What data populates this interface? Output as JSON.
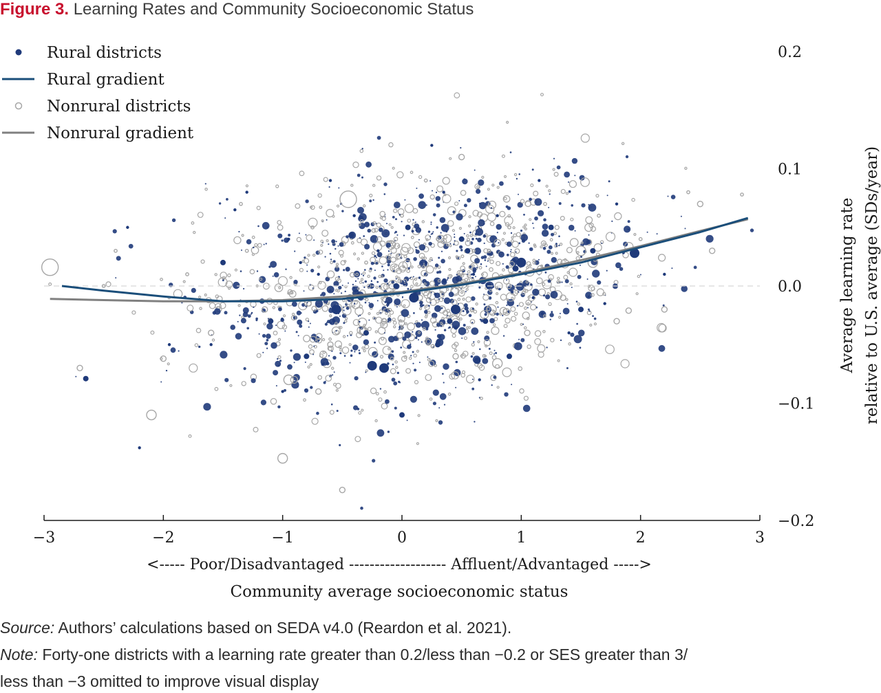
{
  "figure": {
    "label": "Figure 3.",
    "title": "Learning Rates and Community Socioeconomic Status"
  },
  "colors": {
    "rural": "#1f3a7a",
    "rural_line": "#1a4e7a",
    "nonrural": "#a6a6a6",
    "nonrural_line": "#808080",
    "title_accent": "#c8102e",
    "zero_line": "#d6d6d6"
  },
  "chart_data": {
    "type": "scatter",
    "title": "Learning Rates and Community Socioeconomic Status",
    "xlabel": "Community average socioeconomic status",
    "xlabel_direction": "<----- Poor/Disadvantaged ------------------- Affluent/Advantaged ----->",
    "ylabel": [
      "Average learning rate",
      "relative to U.S. average (SDs/year)"
    ],
    "xlim": [
      -3,
      3
    ],
    "ylim": [
      -0.2,
      0.2
    ],
    "x_ticks": [
      -3,
      -2,
      -1,
      0,
      1,
      2,
      3
    ],
    "x_tick_labels": [
      "−3",
      "−2",
      "−1",
      "0",
      "1",
      "2",
      "3"
    ],
    "y_ticks": [
      0.2,
      0.1,
      0.0,
      -0.1,
      -0.2
    ],
    "y_tick_labels": [
      "0.2",
      "0.1",
      "0.0",
      "−0.1",
      "−0.2"
    ],
    "y_axis_side": "right",
    "reference_line": {
      "y": 0.0,
      "style": "dashed"
    },
    "legend": {
      "placement": "top-left",
      "entries": [
        "Rural districts",
        "Rural gradient",
        "Nonrural districts",
        "Nonrural gradient"
      ]
    },
    "series": [
      {
        "name": "Rural gradient",
        "kind": "line",
        "x": [
          -2.85,
          -2.5,
          -2.0,
          -1.5,
          -1.0,
          -0.5,
          0.0,
          0.5,
          1.0,
          1.5,
          2.0,
          2.5,
          2.9
        ],
        "y": [
          0.0,
          -0.004,
          -0.009,
          -0.013,
          -0.013,
          -0.011,
          -0.006,
          0.001,
          0.01,
          0.02,
          0.033,
          0.046,
          0.058
        ]
      },
      {
        "name": "Nonrural gradient",
        "kind": "line",
        "x": [
          -2.95,
          -2.5,
          -2.0,
          -1.5,
          -1.0,
          -0.5,
          0.0,
          0.5,
          1.0,
          1.5,
          2.0,
          2.5,
          2.9
        ],
        "y": [
          -0.011,
          -0.012,
          -0.013,
          -0.013,
          -0.012,
          -0.009,
          -0.005,
          0.002,
          0.011,
          0.022,
          0.034,
          0.047,
          0.057
        ]
      },
      {
        "name": "Rural districts",
        "kind": "points",
        "note": "representative sample",
        "x": [
          -2.65,
          -2.2,
          -1.95,
          -1.5,
          -1.3,
          -1.1,
          -0.95,
          -0.8,
          -0.7,
          -0.55,
          -0.4,
          -0.3,
          -0.2,
          -0.15,
          -0.05,
          0.05,
          0.1,
          0.2,
          0.3,
          0.35,
          0.45,
          0.5,
          0.6,
          0.7,
          0.8,
          0.9,
          1.0,
          1.1,
          1.25,
          1.4,
          1.6,
          1.8,
          1.95,
          2.2,
          -1.6,
          -1.0,
          -0.6,
          0.0,
          0.25,
          0.65,
          1.15,
          1.5,
          -2.3,
          -0.85,
          0.4,
          0.95,
          1.7,
          -0.25,
          0.55,
          -1.4
        ],
        "y": [
          -0.079,
          -0.138,
          -0.05,
          0.02,
          0.08,
          -0.03,
          0.04,
          -0.06,
          0.01,
          -0.02,
          0.06,
          -0.04,
          0.03,
          -0.07,
          0.0,
          0.05,
          -0.01,
          0.02,
          -0.05,
          0.08,
          -0.02,
          0.04,
          0.01,
          -0.03,
          0.06,
          -0.06,
          0.02,
          -0.01,
          0.05,
          -0.04,
          0.03,
          0.07,
          0.028,
          0.01,
          -0.05,
          -0.09,
          0.09,
          -0.11,
          0.12,
          -0.08,
          0.09,
          -0.02,
          0.05,
          0.02,
          -0.03,
          0.015,
          -0.015,
          -0.068,
          0.03,
          0.065
        ],
        "size": [
          2,
          1,
          1,
          2,
          1,
          2,
          1,
          2,
          1,
          3,
          1,
          2,
          1,
          3,
          2,
          2,
          3,
          1,
          2,
          1,
          3,
          2,
          1,
          2,
          1,
          2,
          3,
          1,
          2,
          1,
          2,
          1,
          3,
          1,
          1,
          1,
          1,
          2,
          1,
          1,
          1,
          2,
          1,
          1,
          2,
          2,
          1,
          3,
          2,
          1
        ]
      },
      {
        "name": "Nonrural districts",
        "kind": "points",
        "note": "representative sample",
        "x": [
          -2.95,
          -2.7,
          -2.4,
          -2.1,
          -1.8,
          -1.6,
          -1.35,
          -1.15,
          -0.95,
          -0.75,
          -0.6,
          -0.45,
          -0.3,
          -0.15,
          0.0,
          0.15,
          0.3,
          0.45,
          0.6,
          0.75,
          0.9,
          1.05,
          1.2,
          1.35,
          1.5,
          1.65,
          1.8,
          2.0,
          2.2,
          2.4,
          2.6,
          2.85,
          -2.0,
          -1.0,
          -0.5,
          0.8,
          1.9,
          -1.3,
          0.2,
          2.5,
          -0.7,
          1.6,
          -2.5,
          0.5
        ],
        "y": [
          0.016,
          -0.07,
          0.03,
          -0.11,
          0.01,
          -0.04,
          0.07,
          -0.02,
          -0.08,
          0.05,
          -0.05,
          0.074,
          0.02,
          -0.03,
          0.06,
          -0.01,
          0.04,
          -0.06,
          0.03,
          -0.02,
          0.05,
          -0.04,
          0.07,
          -0.01,
          0.03,
          0.06,
          -0.03,
          0.04,
          -0.02,
          0.08,
          0.03,
          0.078,
          -0.062,
          -0.147,
          -0.174,
          -0.066,
          -0.021,
          0.03,
          0.09,
          0.07,
          -0.09,
          0.02,
          0.0,
          0.11
        ],
        "size": [
          4,
          2,
          1,
          3,
          1,
          2,
          1,
          2,
          3,
          1,
          2,
          4,
          1,
          2,
          1,
          2,
          1,
          2,
          1,
          3,
          1,
          2,
          1,
          2,
          3,
          1,
          2,
          1,
          2,
          1,
          2,
          1,
          2,
          3,
          2,
          3,
          2,
          1,
          1,
          2,
          2,
          3,
          1,
          2
        ]
      }
    ]
  },
  "footer": {
    "source_label": "Source:",
    "source_text": "Authors’ calculations based on SEDA v4.0 (Reardon et al. 2021).",
    "note_label": "Note:",
    "note_line1": "Forty-one districts with a learning rate greater than 0.2/less than −0.2 or SES greater than 3/",
    "note_line2": "less than −3 omitted to improve visual display"
  }
}
